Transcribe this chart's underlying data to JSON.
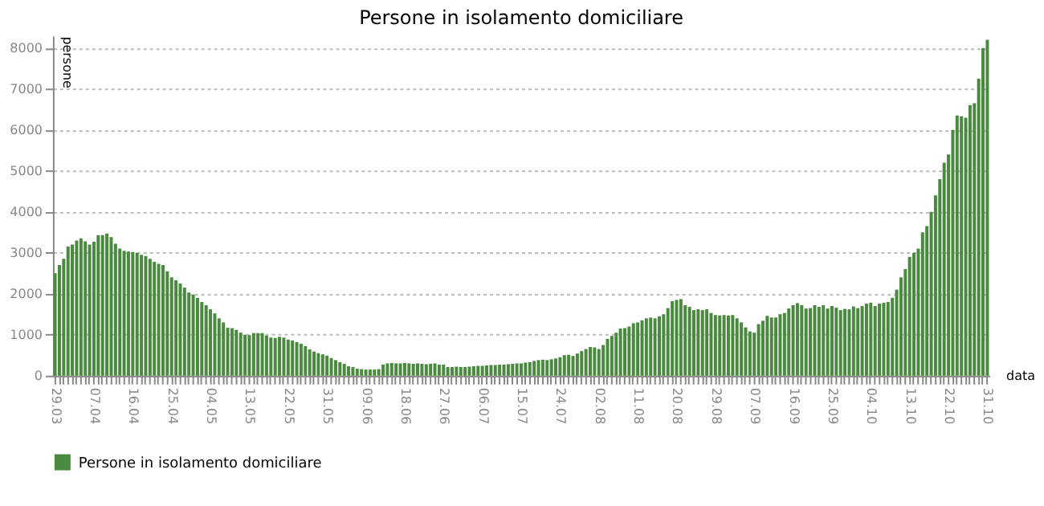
{
  "chart_data": {
    "type": "bar",
    "title": "Persone in isolamento domiciliare",
    "xlabel": "data",
    "ylabel": "persone",
    "categories": [
      "29.03",
      null,
      null,
      null,
      null,
      null,
      null,
      null,
      null,
      "07.04",
      null,
      null,
      null,
      null,
      null,
      null,
      null,
      null,
      "16.04",
      null,
      null,
      null,
      null,
      null,
      null,
      null,
      null,
      "25.04",
      null,
      null,
      null,
      null,
      null,
      null,
      null,
      null,
      "04.05",
      null,
      null,
      null,
      null,
      null,
      null,
      null,
      null,
      "13.05",
      null,
      null,
      null,
      null,
      null,
      null,
      null,
      null,
      "22.05",
      null,
      null,
      null,
      null,
      null,
      null,
      null,
      null,
      "31.05",
      null,
      null,
      null,
      null,
      null,
      null,
      null,
      null,
      "09.06",
      null,
      null,
      null,
      null,
      null,
      null,
      null,
      null,
      "18.06",
      null,
      null,
      null,
      null,
      null,
      null,
      null,
      null,
      "27.06",
      null,
      null,
      null,
      null,
      null,
      null,
      null,
      null,
      "06.07",
      null,
      null,
      null,
      null,
      null,
      null,
      null,
      null,
      "15.07",
      null,
      null,
      null,
      null,
      null,
      null,
      null,
      null,
      "24.07",
      null,
      null,
      null,
      null,
      null,
      null,
      null,
      null,
      "02.08",
      null,
      null,
      null,
      null,
      null,
      null,
      null,
      null,
      "11.08",
      null,
      null,
      null,
      null,
      null,
      null,
      null,
      null,
      "20.08",
      null,
      null,
      null,
      null,
      null,
      null,
      null,
      null,
      "29.08",
      null,
      null,
      null,
      null,
      null,
      null,
      null,
      null,
      "07.09",
      null,
      null,
      null,
      null,
      null,
      null,
      null,
      null,
      "16.09",
      null,
      null,
      null,
      null,
      null,
      null,
      null,
      null,
      "25.09",
      null,
      null,
      null,
      null,
      null,
      null,
      null,
      null,
      "04.10",
      null,
      null,
      null,
      null,
      null,
      null,
      null,
      null,
      "13.10",
      null,
      null,
      null,
      null,
      null,
      null,
      null,
      null,
      "22.10",
      null,
      null,
      null,
      null,
      null,
      null,
      null,
      null,
      "31.10"
    ],
    "series": [
      {
        "name": "Persone in isolamento domiciliare",
        "color": "#4a8a3f",
        "values": [
          2500,
          2700,
          2850,
          3150,
          3200,
          3300,
          3350,
          3280,
          3200,
          3270,
          3430,
          3430,
          3470,
          3380,
          3220,
          3100,
          3050,
          3030,
          3020,
          3000,
          2950,
          2920,
          2850,
          2780,
          2730,
          2700,
          2550,
          2400,
          2330,
          2250,
          2150,
          2030,
          1980,
          1900,
          1800,
          1720,
          1620,
          1520,
          1400,
          1300,
          1170,
          1160,
          1120,
          1050,
          1000,
          990,
          1040,
          1040,
          1040,
          980,
          930,
          920,
          950,
          930,
          880,
          860,
          820,
          780,
          720,
          640,
          590,
          550,
          520,
          490,
          430,
          380,
          330,
          290,
          230,
          210,
          170,
          160,
          150,
          150,
          150,
          160,
          270,
          300,
          310,
          300,
          300,
          310,
          300,
          290,
          300,
          290,
          280,
          290,
          300,
          270,
          270,
          210,
          210,
          220,
          210,
          210,
          220,
          230,
          240,
          240,
          250,
          260,
          260,
          270,
          270,
          280,
          290,
          300,
          300,
          320,
          330,
          360,
          380,
          390,
          380,
          400,
          420,
          450,
          500,
          510,
          480,
          540,
          600,
          650,
          700,
          690,
          650,
          750,
          900,
          970,
          1050,
          1150,
          1160,
          1200,
          1280,
          1300,
          1350,
          1400,
          1420,
          1400,
          1450,
          1500,
          1650,
          1820,
          1850,
          1870,
          1720,
          1680,
          1600,
          1620,
          1600,
          1620,
          1530,
          1480,
          1470,
          1480,
          1470,
          1480,
          1400,
          1300,
          1180,
          1080,
          1050,
          1260,
          1340,
          1460,
          1420,
          1420,
          1500,
          1530,
          1640,
          1720,
          1770,
          1720,
          1640,
          1650,
          1720,
          1680,
          1720,
          1640,
          1700,
          1660,
          1600,
          1630,
          1620,
          1690,
          1650,
          1700,
          1760,
          1780,
          1700,
          1760,
          1780,
          1800,
          1900,
          2100,
          2400,
          2600,
          2900,
          3000,
          3100,
          3500,
          3650,
          4000,
          4400,
          4800,
          5200,
          5400,
          6000,
          6350,
          6330,
          6300,
          6600,
          6650,
          7250,
          8000,
          8200
        ]
      }
    ],
    "ylim": [
      0,
      8300
    ],
    "yticks": [
      0,
      1000,
      2000,
      3000,
      4000,
      5000,
      6000,
      7000,
      8000
    ],
    "grid": "y",
    "legend": "bottom"
  }
}
